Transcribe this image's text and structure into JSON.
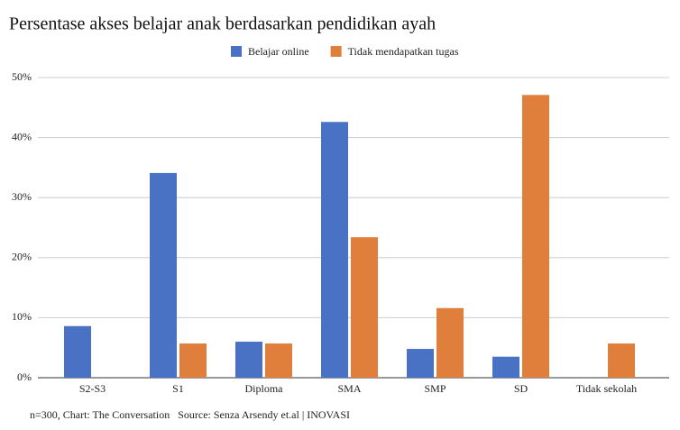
{
  "chart_data": {
    "type": "bar",
    "title": "Persentase akses belajar anak berdasarkan pendidikan ayah",
    "categories": [
      "S2-S3",
      "S1",
      "Diploma",
      "SMA",
      "SMP",
      "SD",
      "Tidak sekolah"
    ],
    "series": [
      {
        "name": "Belajar online",
        "color": "#4a72c4",
        "values": [
          8.6,
          34.1,
          6.0,
          42.6,
          4.8,
          3.5,
          0
        ]
      },
      {
        "name": "Tidak mendapatkan tugas",
        "color": "#e07f3c",
        "values": [
          0,
          5.7,
          5.7,
          23.4,
          11.6,
          47.1,
          5.7
        ]
      }
    ],
    "ylim": [
      0,
      50
    ],
    "yticks": [
      {
        "value": 0,
        "label": "0%"
      },
      {
        "value": 10,
        "label": "10%"
      },
      {
        "value": 20,
        "label": "20%"
      },
      {
        "value": 30,
        "label": "30%"
      },
      {
        "value": 40,
        "label": "40%"
      },
      {
        "value": 50,
        "label": "50%"
      }
    ],
    "grid": true,
    "legend": "top",
    "note": "n=300, Chart: The Conversation   Source: Senza Arsendy et.al | INOVASI"
  }
}
